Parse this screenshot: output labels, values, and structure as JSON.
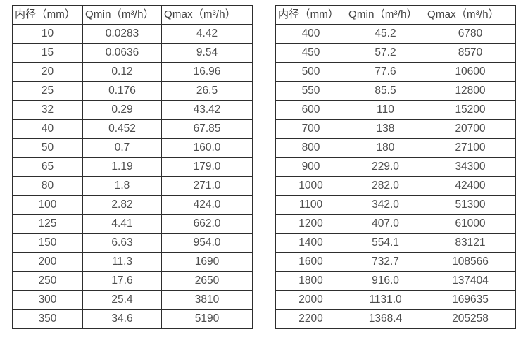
{
  "page": {
    "description": "Flow meter diameter vs minimum and maximum flow rate specification tables",
    "background_color": "#ffffff",
    "border_color": "#2e2e2e",
    "text_color": "#4d4d4d"
  },
  "tables": [
    {
      "name": "flow-range-table-small-diameters",
      "headers": [
        "内径（mm）",
        "Qmin（m³/h）",
        "Qmax（m³/h）"
      ],
      "rows": [
        [
          "10",
          "0.0283",
          "4.42"
        ],
        [
          "15",
          "0.0636",
          "9.54"
        ],
        [
          "20",
          "0.12",
          "16.96"
        ],
        [
          "25",
          "0.176",
          "26.5"
        ],
        [
          "32",
          "0.29",
          "43.42"
        ],
        [
          "40",
          "0.452",
          "67.85"
        ],
        [
          "50",
          "0.7",
          "160.0"
        ],
        [
          "65",
          "1.19",
          "179.0"
        ],
        [
          "80",
          "1.8",
          "271.0"
        ],
        [
          "100",
          "2.82",
          "424.0"
        ],
        [
          "125",
          "4.41",
          "662.0"
        ],
        [
          "150",
          "6.63",
          "954.0"
        ],
        [
          "200",
          "11.3",
          "1690"
        ],
        [
          "250",
          "17.6",
          "2650"
        ],
        [
          "300",
          "25.4",
          "3810"
        ],
        [
          "350",
          "34.6",
          "5190"
        ]
      ]
    },
    {
      "name": "flow-range-table-large-diameters",
      "headers": [
        "内径（mm）",
        "Qmin（m³/h）",
        "Qmax（m³/h）"
      ],
      "rows": [
        [
          "400",
          "45.2",
          "6780"
        ],
        [
          "450",
          "57.2",
          "8570"
        ],
        [
          "500",
          "77.6",
          "10600"
        ],
        [
          "550",
          "85.5",
          "12800"
        ],
        [
          "600",
          "110",
          "15200"
        ],
        [
          "700",
          "138",
          "20700"
        ],
        [
          "800",
          "180",
          "27100"
        ],
        [
          "900",
          "229.0",
          "34300"
        ],
        [
          "1000",
          "282.0",
          "42400"
        ],
        [
          "1100",
          "342.0",
          "51300"
        ],
        [
          "1200",
          "407.0",
          "61000"
        ],
        [
          "1400",
          "554.1",
          "83121"
        ],
        [
          "1600",
          "732.7",
          "108566"
        ],
        [
          "1800",
          "916.0",
          "137404"
        ],
        [
          "2000",
          "1131.0",
          "169635"
        ],
        [
          "2200",
          "1368.4",
          "205258"
        ]
      ]
    }
  ]
}
